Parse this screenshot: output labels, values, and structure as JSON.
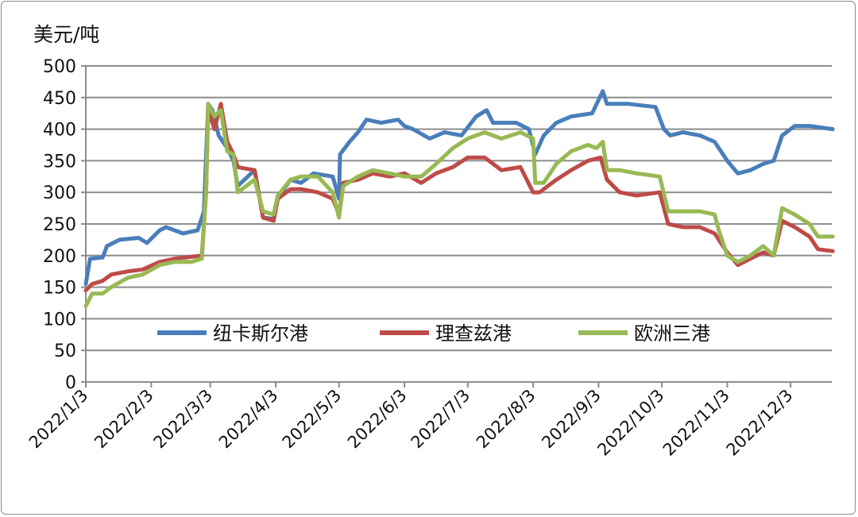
{
  "chart_data": {
    "type": "line",
    "title": "",
    "ylabel": "美元/吨",
    "xlabel": "",
    "x_unit": "days since 2022/1/3",
    "ylim": [
      0,
      500
    ],
    "xlim": [
      0,
      354
    ],
    "yticks": [
      0,
      50,
      100,
      150,
      200,
      250,
      300,
      350,
      400,
      450,
      500
    ],
    "xticks": [
      {
        "day": 0,
        "label": "2022/1/3"
      },
      {
        "day": 31,
        "label": "2022/2/3"
      },
      {
        "day": 59,
        "label": "2022/3/3"
      },
      {
        "day": 90,
        "label": "2022/4/3"
      },
      {
        "day": 120,
        "label": "2022/5/3"
      },
      {
        "day": 151,
        "label": "2022/6/3"
      },
      {
        "day": 181,
        "label": "2022/7/3"
      },
      {
        "day": 212,
        "label": "2022/8/3"
      },
      {
        "day": 243,
        "label": "2022/9/3"
      },
      {
        "day": 273,
        "label": "2022/10/3"
      },
      {
        "day": 304,
        "label": "2022/11/3"
      },
      {
        "day": 334,
        "label": "2022/12/3"
      }
    ],
    "grid": true,
    "legend_position": "bottom-center-inside",
    "series": [
      {
        "name": "纽卡斯尔港",
        "color": "#4a7ebb",
        "x": [
          0,
          2,
          8,
          10,
          16,
          25,
          29,
          35,
          38,
          46,
          53,
          56,
          58,
          60,
          63,
          67,
          70,
          72,
          80,
          84,
          89,
          91,
          97,
          102,
          108,
          117,
          120,
          120.5,
          125,
          129,
          133,
          140,
          148,
          151,
          155,
          163,
          170,
          178,
          185,
          190,
          193,
          204,
          210,
          213,
          217,
          223,
          230,
          240,
          245,
          247,
          257,
          270,
          274,
          277,
          283,
          291,
          298,
          304,
          309,
          315,
          321,
          326,
          330,
          336,
          343,
          354
        ],
        "y": [
          155,
          195,
          197,
          215,
          225,
          228,
          220,
          240,
          245,
          235,
          240,
          270,
          440,
          430,
          390,
          370,
          350,
          310,
          335,
          260,
          258,
          290,
          320,
          315,
          330,
          325,
          290,
          360,
          380,
          395,
          415,
          410,
          415,
          405,
          400,
          385,
          395,
          390,
          420,
          430,
          410,
          410,
          400,
          360,
          390,
          410,
          420,
          425,
          460,
          440,
          440,
          435,
          400,
          390,
          395,
          390,
          380,
          350,
          330,
          335,
          345,
          350,
          390,
          405,
          405,
          400
        ]
      },
      {
        "name": "理查兹港",
        "color": "#be4b48",
        "x": [
          0,
          3,
          8,
          12,
          20,
          27,
          35,
          42,
          50,
          55,
          57,
          58,
          61,
          64,
          67,
          70,
          72,
          80,
          84,
          89,
          91,
          97,
          102,
          110,
          117,
          120,
          122,
          129,
          136,
          144,
          151,
          159,
          166,
          174,
          181,
          189,
          197,
          206,
          212,
          215,
          223,
          230,
          238,
          244,
          247,
          253,
          261,
          272,
          276,
          283,
          291,
          298,
          304,
          309,
          315,
          321,
          326,
          330,
          336,
          343,
          347,
          354
        ],
        "y": [
          145,
          155,
          160,
          170,
          175,
          178,
          190,
          195,
          198,
          200,
          300,
          430,
          400,
          440,
          380,
          360,
          340,
          335,
          260,
          255,
          290,
          305,
          305,
          300,
          290,
          265,
          315,
          320,
          330,
          325,
          330,
          315,
          330,
          340,
          355,
          355,
          335,
          340,
          300,
          300,
          320,
          335,
          350,
          355,
          320,
          300,
          295,
          300,
          250,
          245,
          245,
          235,
          205,
          185,
          195,
          205,
          200,
          255,
          245,
          230,
          210,
          207
        ]
      },
      {
        "name": "欧洲三港",
        "color": "#98b954",
        "x": [
          0,
          3,
          8,
          12,
          20,
          27,
          35,
          42,
          50,
          55,
          57,
          58,
          61,
          64,
          67,
          70,
          72,
          80,
          84,
          89,
          91,
          97,
          102,
          110,
          117,
          120,
          122,
          129,
          136,
          144,
          151,
          159,
          166,
          174,
          181,
          189,
          197,
          206,
          212,
          213,
          217,
          223,
          230,
          238,
          242,
          245,
          247,
          253,
          261,
          272,
          276,
          283,
          291,
          298,
          300,
          304,
          309,
          315,
          321,
          326,
          330,
          336,
          343,
          347,
          354
        ],
        "y": [
          120,
          140,
          140,
          150,
          165,
          170,
          185,
          190,
          190,
          195,
          300,
          440,
          420,
          430,
          365,
          360,
          300,
          320,
          270,
          265,
          295,
          320,
          325,
          325,
          300,
          260,
          310,
          325,
          335,
          330,
          325,
          325,
          345,
          370,
          385,
          395,
          385,
          395,
          385,
          315,
          315,
          345,
          365,
          375,
          370,
          380,
          335,
          335,
          330,
          325,
          270,
          270,
          270,
          265,
          240,
          200,
          190,
          200,
          215,
          200,
          275,
          265,
          250,
          230,
          230
        ]
      }
    ]
  }
}
